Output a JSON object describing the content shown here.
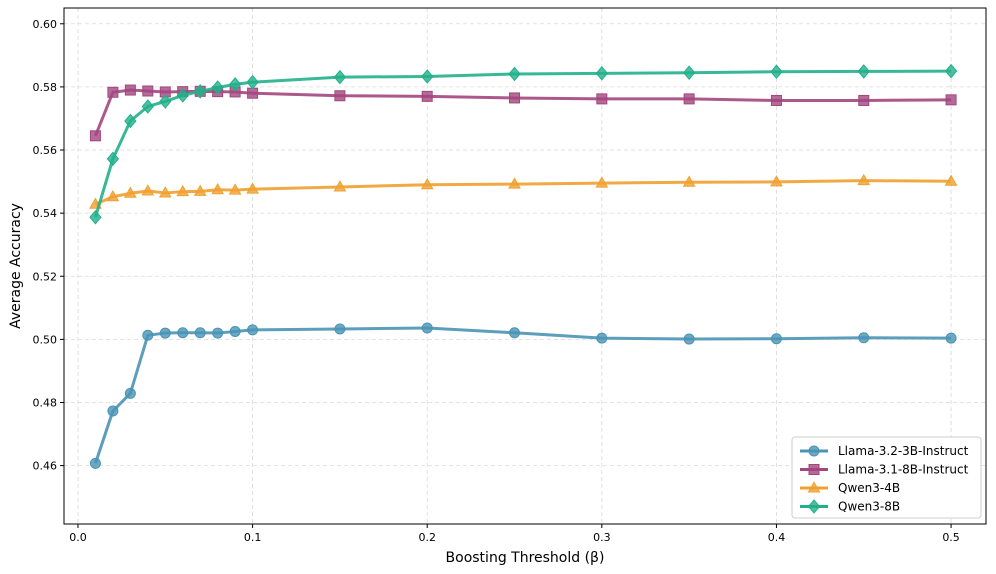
{
  "chart_data": {
    "type": "line",
    "title": "",
    "xlabel": "Boosting Threshold (β)",
    "ylabel": "Average Accuracy",
    "xlim": [
      -0.008,
      0.52
    ],
    "ylim": [
      0.4415,
      0.605
    ],
    "grid": true,
    "legend_position": "bottom-right",
    "xticks": [
      0.0,
      0.1,
      0.2,
      0.3,
      0.4,
      0.5
    ],
    "xtick_labels": [
      "0.0",
      "0.1",
      "0.2",
      "0.3",
      "0.4",
      "0.5"
    ],
    "yticks": [
      0.46,
      0.48,
      0.5,
      0.52,
      0.54,
      0.56,
      0.58,
      0.6
    ],
    "ytick_labels": [
      "0.46",
      "0.48",
      "0.50",
      "0.52",
      "0.54",
      "0.56",
      "0.58",
      "0.60"
    ],
    "x": [
      0.01,
      0.02,
      0.03,
      0.04,
      0.05,
      0.06,
      0.07,
      0.08,
      0.09,
      0.1,
      0.15,
      0.2,
      0.25,
      0.3,
      0.35,
      0.4,
      0.45,
      0.5
    ],
    "series": [
      {
        "name": "Llama-3.2-3B-Instruct",
        "color": "#4a93b5",
        "marker": "circle",
        "values": [
          0.4607,
          0.4773,
          0.4829,
          0.5013,
          0.502,
          0.5021,
          0.5021,
          0.502,
          0.5025,
          0.503,
          0.5033,
          0.5036,
          0.5021,
          0.5004,
          0.5001,
          0.5002,
          0.5005,
          0.5004
        ]
      },
      {
        "name": "Llama-3.1-8B-Instruct",
        "color": "#a3467e",
        "marker": "square",
        "values": [
          0.5645,
          0.5783,
          0.579,
          0.5787,
          0.5784,
          0.5785,
          0.5786,
          0.5785,
          0.5784,
          0.578,
          0.5772,
          0.577,
          0.5765,
          0.5762,
          0.5762,
          0.5757,
          0.5757,
          0.5759
        ]
      },
      {
        "name": "Qwen3-4B",
        "color": "#f0a030",
        "marker": "triangle",
        "values": [
          0.5428,
          0.5452,
          0.5463,
          0.547,
          0.5464,
          0.5468,
          0.5469,
          0.5474,
          0.5473,
          0.5476,
          0.5483,
          0.549,
          0.5492,
          0.5495,
          0.5498,
          0.5499,
          0.5503,
          0.5501
        ]
      },
      {
        "name": "Qwen3-8B",
        "color": "#22b08a",
        "marker": "diamond",
        "values": [
          0.5387,
          0.5572,
          0.5692,
          0.5738,
          0.5754,
          0.5773,
          0.5786,
          0.5798,
          0.5808,
          0.5815,
          0.5831,
          0.5833,
          0.5841,
          0.5843,
          0.5845,
          0.5848,
          0.5849,
          0.585
        ]
      }
    ]
  }
}
